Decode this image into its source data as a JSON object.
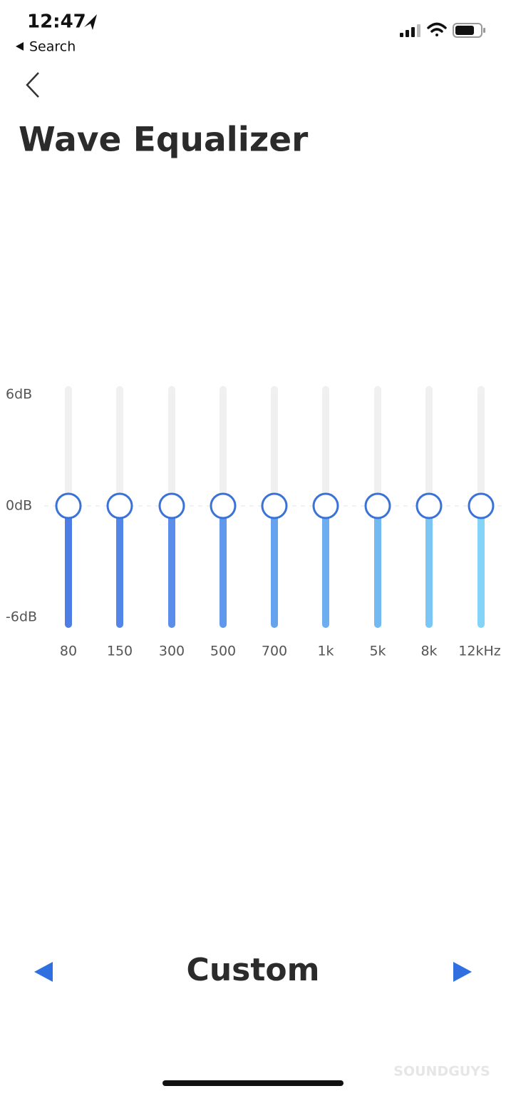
{
  "status_bar": {
    "time": "12:47",
    "back_app": "Search"
  },
  "title": "Wave Equalizer",
  "equalizer": {
    "type": "slider",
    "categories": [
      "80",
      "150",
      "300",
      "500",
      "700",
      "1k",
      "5k",
      "8k",
      "12kHz"
    ],
    "values": [
      0,
      0,
      0,
      0,
      0,
      0,
      0,
      0,
      0
    ],
    "colors": [
      "#4f7de6",
      "#5485e8",
      "#5a8eea",
      "#6098ec",
      "#66a3ee",
      "#6daef0",
      "#74baf2",
      "#7bc6f4",
      "#83d4f6"
    ],
    "ylim": [
      -6,
      6
    ],
    "yticks": [
      {
        "value": 6,
        "label": "6dB"
      },
      {
        "value": 0,
        "label": "0dB"
      },
      {
        "value": -6,
        "label": "-6dB"
      }
    ]
  },
  "preset": "Custom",
  "watermark": "SOUNDGUYS"
}
